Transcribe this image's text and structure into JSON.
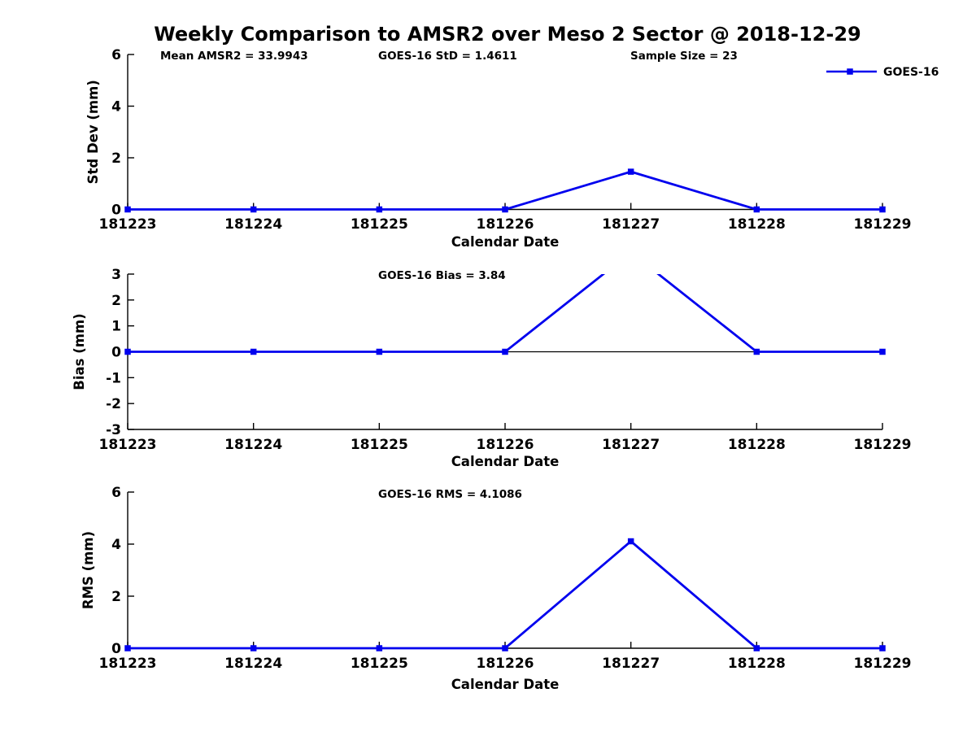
{
  "title": "Weekly Comparison to AMSR2 over Meso 2 Sector @ 2018-12-29",
  "legend": {
    "label": "GOES-16"
  },
  "colors": {
    "series": "#0000EE",
    "axis": "#000000",
    "text": "#000000",
    "background": "#ffffff"
  },
  "chart_data": {
    "type": "line",
    "title": "Weekly Comparison to AMSR2 over Meso 2 Sector @ 2018-12-29",
    "x_categories": [
      "181223",
      "181224",
      "181225",
      "181226",
      "181227",
      "181228",
      "181229"
    ],
    "xlabel": "Calendar Date",
    "grid": false,
    "legend_position": "top-right",
    "marker": "square",
    "subplots": [
      {
        "ylabel": "Std Dev (mm)",
        "ylim": [
          0,
          6
        ],
        "yticks": [
          0,
          2,
          4,
          6
        ],
        "annotations": [
          "Mean AMSR2 = 33.9943",
          "GOES-16 StD = 1.4611",
          "Sample Size = 23"
        ],
        "series": [
          {
            "name": "GOES-16",
            "values": [
              0,
              0,
              0,
              0,
              1.4611,
              0,
              0
            ]
          }
        ]
      },
      {
        "ylabel": "Bias (mm)",
        "ylim": [
          -3,
          3
        ],
        "yticks": [
          -3,
          -2,
          -1,
          0,
          1,
          2,
          3
        ],
        "zero_line": true,
        "clipped_peak": true,
        "annotations": [
          "GOES-16 Bias  = 3.84"
        ],
        "series": [
          {
            "name": "GOES-16",
            "values": [
              0,
              0,
              0,
              0,
              3.84,
              0,
              0
            ]
          }
        ]
      },
      {
        "ylabel": "RMS (mm)",
        "ylim": [
          0,
          6
        ],
        "yticks": [
          0,
          2,
          4,
          6
        ],
        "annotations": [
          "GOES-16 RMS = 4.1086"
        ],
        "series": [
          {
            "name": "GOES-16",
            "values": [
              0,
              0,
              0,
              0,
              4.1086,
              0,
              0
            ]
          }
        ]
      }
    ]
  }
}
